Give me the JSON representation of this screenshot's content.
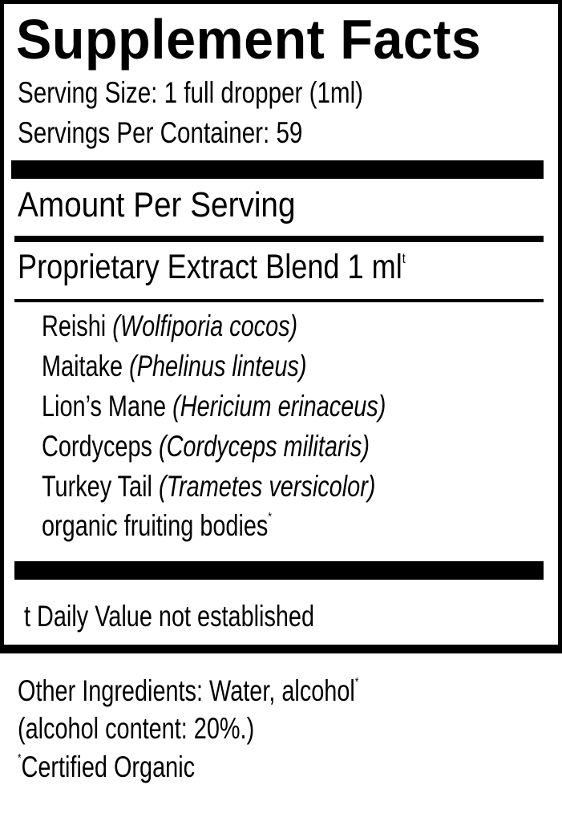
{
  "title": "Supplement Facts",
  "serving_size": "Serving Size: 1 full dropper (1ml)",
  "servings_per_container": "Servings Per Container: 59",
  "amount_per_serving": "Amount Per Serving",
  "blend": {
    "label": "Proprietary Extract Blend 1 ml",
    "mark": "t"
  },
  "ingredients": [
    {
      "name": "Reishi",
      "latin": "(Wolfiporia cocos)"
    },
    {
      "name": "Maitake",
      "latin": "(Phelinus linteus)"
    },
    {
      "name": "Lion’s Mane",
      "latin": "(Hericium erinaceus)"
    },
    {
      "name": "Cordyceps",
      "latin": "(Cordyceps militaris)"
    },
    {
      "name": "Turkey Tail",
      "latin": "(Trametes versicolor)"
    }
  ],
  "ingredients_note": {
    "text": "organic fruiting bodies",
    "mark": "*"
  },
  "daily_value_note": "t Daily Value not established",
  "other_ingredients": {
    "text": "Other Ingredients: Water, alcohol",
    "mark": "*"
  },
  "alcohol_content": "(alcohol content: 20%.)",
  "certified": {
    "mark": "*",
    "text": "Certified Organic"
  }
}
